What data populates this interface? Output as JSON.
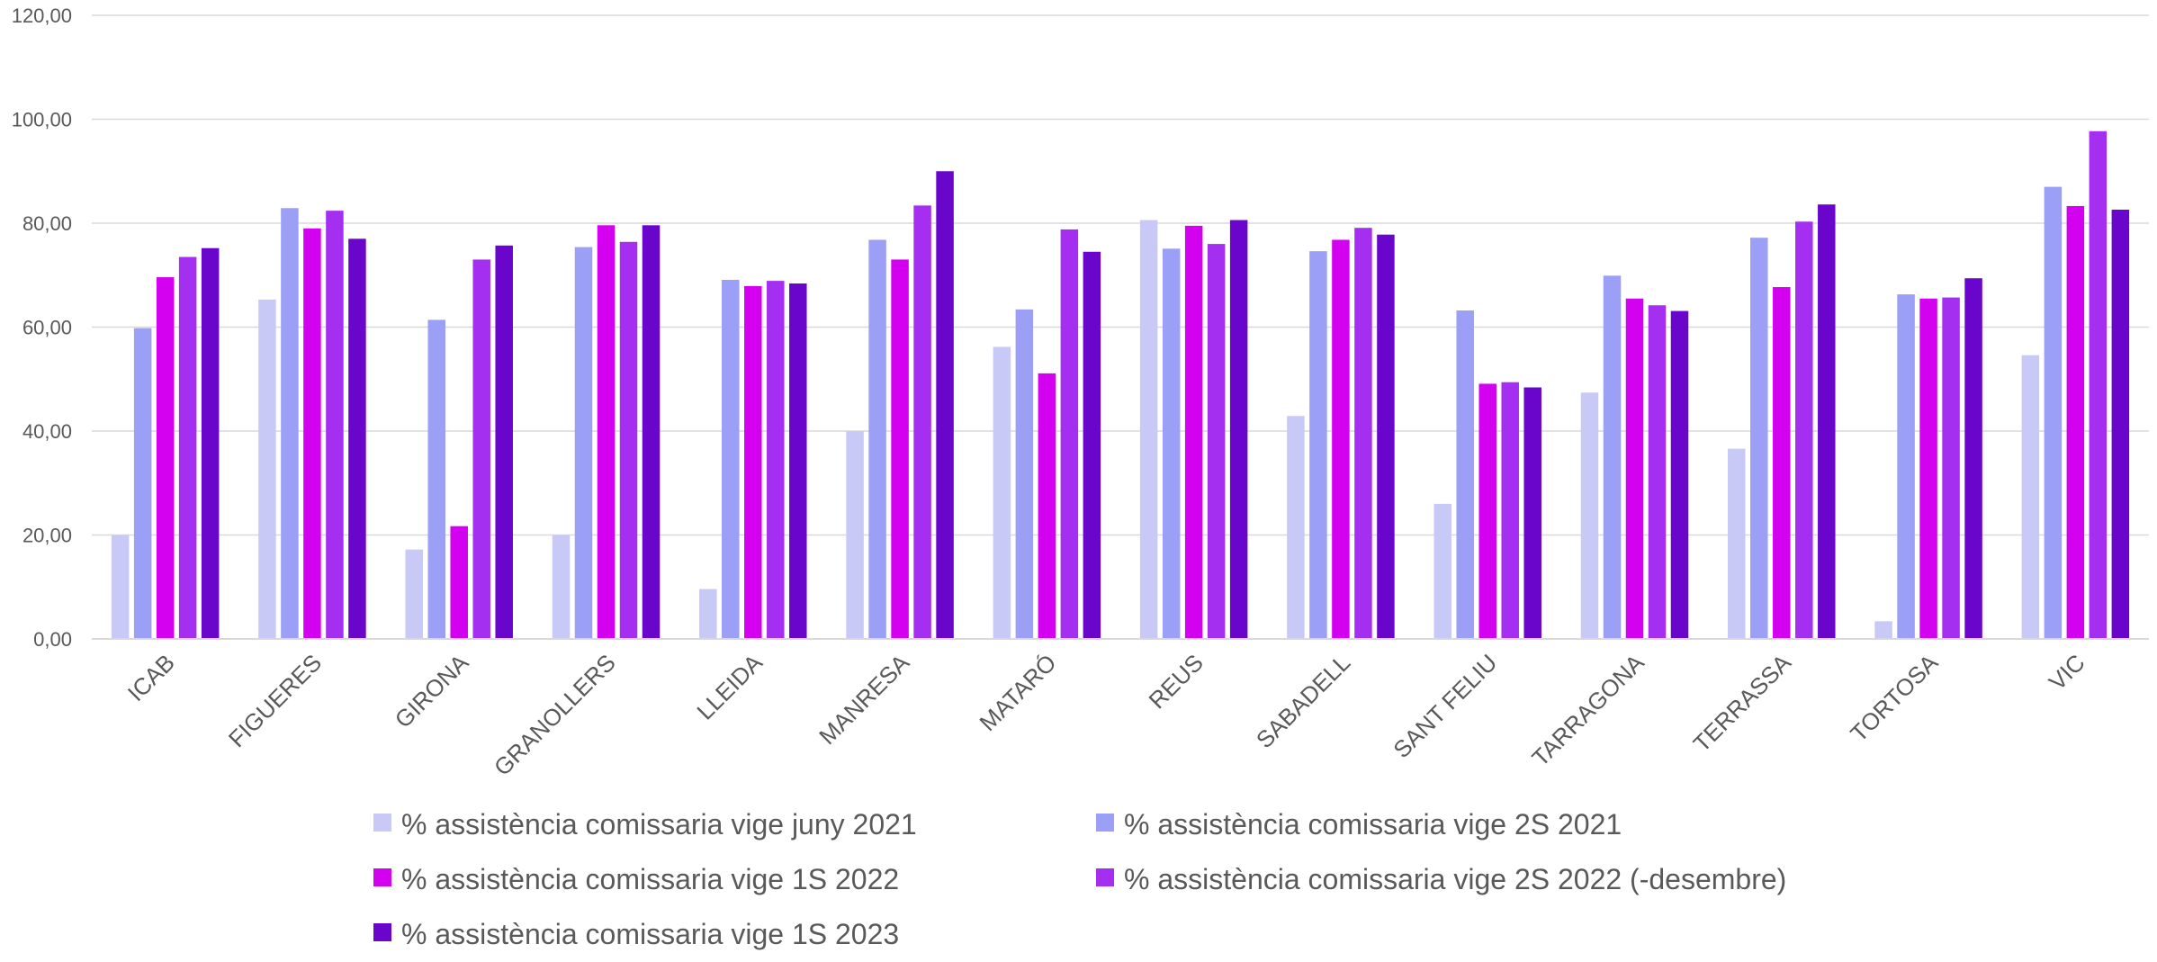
{
  "chart_data": {
    "type": "bar",
    "categories": [
      "ICAB",
      "FIGUERES",
      "GIRONA",
      "GRANOLLERS",
      "LLEIDA",
      "MANRESA",
      "MATARÓ",
      "REUS",
      "SABADELL",
      "SANT FELIU",
      "TARRAGONA",
      "TERRASSA",
      "TORTOSA",
      "VIC"
    ],
    "series": [
      {
        "name": "% assistència comissaria vige juny 2021",
        "color": "#c9c9f7",
        "values": [
          20.0,
          65.3,
          17.2,
          20.0,
          9.6,
          40.0,
          56.2,
          80.6,
          42.9,
          26.0,
          47.4,
          36.6,
          3.4,
          54.6
        ]
      },
      {
        "name": "% assistència comissaria vige 2S 2021",
        "color": "#9b9ff5",
        "values": [
          59.8,
          82.9,
          61.4,
          75.4,
          69.1,
          76.8,
          63.4,
          75.1,
          74.6,
          63.2,
          69.9,
          77.2,
          66.3,
          87.0
        ]
      },
      {
        "name": "% assistència comissaria vige 1S 2022",
        "color": "#d400f0",
        "values": [
          69.6,
          79.0,
          21.7,
          79.6,
          67.9,
          73.0,
          51.1,
          79.5,
          76.8,
          49.1,
          65.5,
          67.7,
          65.5,
          83.3
        ]
      },
      {
        "name": "% assistència comissaria vige 2S 2022 (-desembre)",
        "color": "#a52ff0",
        "values": [
          73.5,
          82.4,
          73.0,
          76.4,
          68.9,
          83.4,
          78.8,
          76.0,
          79.1,
          49.4,
          64.2,
          80.3,
          65.7,
          97.7
        ]
      },
      {
        "name": "% assistència comissaria vige 1S 2023",
        "color": "#6a06cc",
        "values": [
          75.2,
          77.0,
          75.7,
          79.6,
          68.4,
          90.0,
          74.5,
          80.6,
          77.8,
          48.4,
          63.1,
          83.6,
          69.4,
          82.6
        ]
      }
    ],
    "yticks": [
      "0,00",
      "20,00",
      "40,00",
      "60,00",
      "80,00",
      "100,00",
      "120,00"
    ],
    "ylim": [
      0,
      120
    ],
    "grid": true,
    "legend_position": "bottom"
  }
}
